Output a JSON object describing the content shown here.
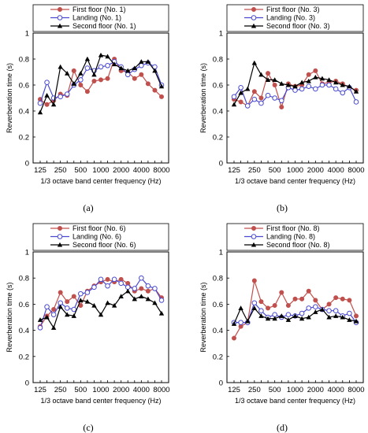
{
  "chart_data": [
    {
      "type": "line",
      "caption": "(a)",
      "xlabel": "1/3 octave band center frequency (Hz)",
      "ylabel": "Reverberation time (s)",
      "ylim": [
        0,
        1
      ],
      "yticks": [
        "0",
        "0.2",
        "0.4",
        "0.6",
        "0.8",
        "1"
      ],
      "x": [
        125,
        160,
        200,
        250,
        315,
        400,
        500,
        630,
        800,
        1000,
        1250,
        1600,
        2000,
        2500,
        3150,
        4000,
        5000,
        6300,
        8000
      ],
      "xtick_labels": [
        "125",
        "250",
        "500",
        "1000",
        "2000",
        "4000",
        "8000"
      ],
      "legend_position": "top-center",
      "series": [
        {
          "name": "First floor (No. 1)",
          "color": "#c0504d",
          "marker": "circle",
          "values": [
            0.49,
            0.45,
            0.48,
            0.53,
            0.52,
            0.71,
            0.6,
            0.55,
            0.63,
            0.64,
            0.65,
            0.8,
            0.71,
            0.7,
            0.65,
            0.68,
            0.61,
            0.56,
            0.51
          ]
        },
        {
          "name": "Landing (No. 1)",
          "color": "#4a4ad0",
          "marker": "open-circle",
          "values": [
            0.46,
            0.62,
            0.5,
            0.51,
            0.53,
            0.6,
            0.64,
            0.73,
            0.71,
            0.74,
            0.75,
            0.78,
            0.74,
            0.68,
            0.72,
            0.75,
            0.77,
            0.74,
            0.6
          ]
        },
        {
          "name": "Second floor (No. 1)",
          "color": "#000000",
          "marker": "triangle",
          "values": [
            0.39,
            0.52,
            0.45,
            0.74,
            0.69,
            0.61,
            0.69,
            0.8,
            0.68,
            0.83,
            0.82,
            0.76,
            0.73,
            0.71,
            0.73,
            0.78,
            0.78,
            0.71,
            0.59
          ]
        }
      ]
    },
    {
      "type": "line",
      "caption": "(b)",
      "xlabel": "1/3 octave band center frequency (Hz)",
      "ylabel": "Reverberation time (s)",
      "ylim": [
        0,
        1
      ],
      "yticks": [
        "0",
        "0.2",
        "0.4",
        "0.6",
        "0.8",
        "1"
      ],
      "x": [
        125,
        160,
        200,
        250,
        315,
        400,
        500,
        630,
        800,
        1000,
        1250,
        1600,
        2000,
        2500,
        3150,
        4000,
        5000,
        6300,
        8000
      ],
      "xtick_labels": [
        "125",
        "250",
        "500",
        "1000",
        "2000",
        "4000",
        "8000"
      ],
      "legend_position": "top-center",
      "series": [
        {
          "name": "First floor (No. 3)",
          "color": "#c0504d",
          "marker": "circle",
          "values": [
            0.49,
            0.47,
            0.44,
            0.55,
            0.5,
            0.69,
            0.6,
            0.43,
            0.61,
            0.59,
            0.6,
            0.68,
            0.71,
            0.61,
            0.62,
            0.63,
            0.61,
            0.58,
            0.56
          ]
        },
        {
          "name": "Landing (No. 3)",
          "color": "#4a4ad0",
          "marker": "open-circle",
          "values": [
            0.51,
            0.58,
            0.44,
            0.49,
            0.46,
            0.52,
            0.5,
            0.48,
            0.58,
            0.56,
            0.57,
            0.59,
            0.57,
            0.6,
            0.6,
            0.57,
            0.54,
            0.58,
            0.47
          ]
        },
        {
          "name": "Second floor (No. 3)",
          "color": "#000000",
          "marker": "triangle",
          "values": [
            0.45,
            0.54,
            0.57,
            0.77,
            0.68,
            0.64,
            0.64,
            0.61,
            0.6,
            0.59,
            0.62,
            0.63,
            0.66,
            0.65,
            0.64,
            0.62,
            0.6,
            0.59,
            0.55
          ]
        }
      ]
    },
    {
      "type": "line",
      "caption": "(c)",
      "xlabel": "1/3 octave band center frequency (Hz)",
      "ylabel": "Reverberation time (s)",
      "ylim": [
        0,
        1
      ],
      "yticks": [
        "0",
        "0.2",
        "0.4",
        "0.6",
        "0.8",
        "1"
      ],
      "x": [
        125,
        160,
        200,
        250,
        315,
        400,
        500,
        630,
        800,
        1000,
        1250,
        1600,
        2000,
        2500,
        3150,
        4000,
        5000,
        6300,
        8000
      ],
      "xtick_labels": [
        "125",
        "250",
        "500",
        "1000",
        "2000",
        "4000",
        "8000"
      ],
      "legend_position": "top-center",
      "series": [
        {
          "name": "First floor (No. 6)",
          "color": "#c0504d",
          "marker": "circle",
          "values": [
            0.43,
            0.51,
            0.56,
            0.69,
            0.62,
            0.66,
            0.59,
            0.7,
            0.74,
            0.77,
            0.79,
            0.77,
            0.79,
            0.76,
            0.7,
            0.72,
            0.7,
            0.72,
            0.65
          ]
        },
        {
          "name": "Landing (No. 6)",
          "color": "#4a4ad0",
          "marker": "open-circle",
          "values": [
            0.42,
            0.58,
            0.52,
            0.61,
            0.57,
            0.56,
            0.68,
            0.69,
            0.73,
            0.79,
            0.74,
            0.79,
            0.76,
            0.73,
            0.72,
            0.8,
            0.74,
            0.72,
            0.63
          ]
        },
        {
          "name": "Second floor (No. 6)",
          "color": "#000000",
          "marker": "triangle",
          "values": [
            0.48,
            0.5,
            0.42,
            0.58,
            0.52,
            0.51,
            0.63,
            0.62,
            0.59,
            0.52,
            0.61,
            0.59,
            0.66,
            0.7,
            0.64,
            0.66,
            0.64,
            0.61,
            0.53
          ]
        }
      ]
    },
    {
      "type": "line",
      "caption": "(d)",
      "xlabel": "1/3 octave band center frequency (Hz)",
      "ylabel": "Reverberation time (s)",
      "ylim": [
        0,
        1
      ],
      "yticks": [
        "0",
        "0.2",
        "0.4",
        "0.6",
        "0.8",
        "1"
      ],
      "x": [
        125,
        160,
        200,
        250,
        315,
        400,
        500,
        630,
        800,
        1000,
        1250,
        1600,
        2000,
        2500,
        3150,
        4000,
        5000,
        6300,
        8000
      ],
      "xtick_labels": [
        "125",
        "250",
        "500",
        "1000",
        "2000",
        "4000",
        "8000"
      ],
      "legend_position": "top-center",
      "series": [
        {
          "name": "First floor (No. 8)",
          "color": "#c0504d",
          "marker": "circle",
          "values": [
            0.34,
            0.43,
            0.46,
            0.78,
            0.62,
            0.57,
            0.59,
            0.69,
            0.59,
            0.64,
            0.64,
            0.7,
            0.63,
            0.56,
            0.6,
            0.65,
            0.64,
            0.63,
            0.51
          ]
        },
        {
          "name": "Landing (No. 8)",
          "color": "#4a4ad0",
          "marker": "open-circle",
          "values": [
            0.46,
            0.46,
            0.46,
            0.61,
            0.55,
            0.5,
            0.52,
            0.5,
            0.52,
            0.51,
            0.53,
            0.57,
            0.58,
            0.56,
            0.55,
            0.55,
            0.51,
            0.53,
            0.46
          ]
        },
        {
          "name": "Second floor (No. 8)",
          "color": "#000000",
          "marker": "triangle",
          "values": [
            0.45,
            0.57,
            0.47,
            0.57,
            0.51,
            0.49,
            0.49,
            0.51,
            0.48,
            0.51,
            0.49,
            0.5,
            0.54,
            0.56,
            0.5,
            0.51,
            0.5,
            0.48,
            0.47
          ]
        }
      ]
    }
  ]
}
